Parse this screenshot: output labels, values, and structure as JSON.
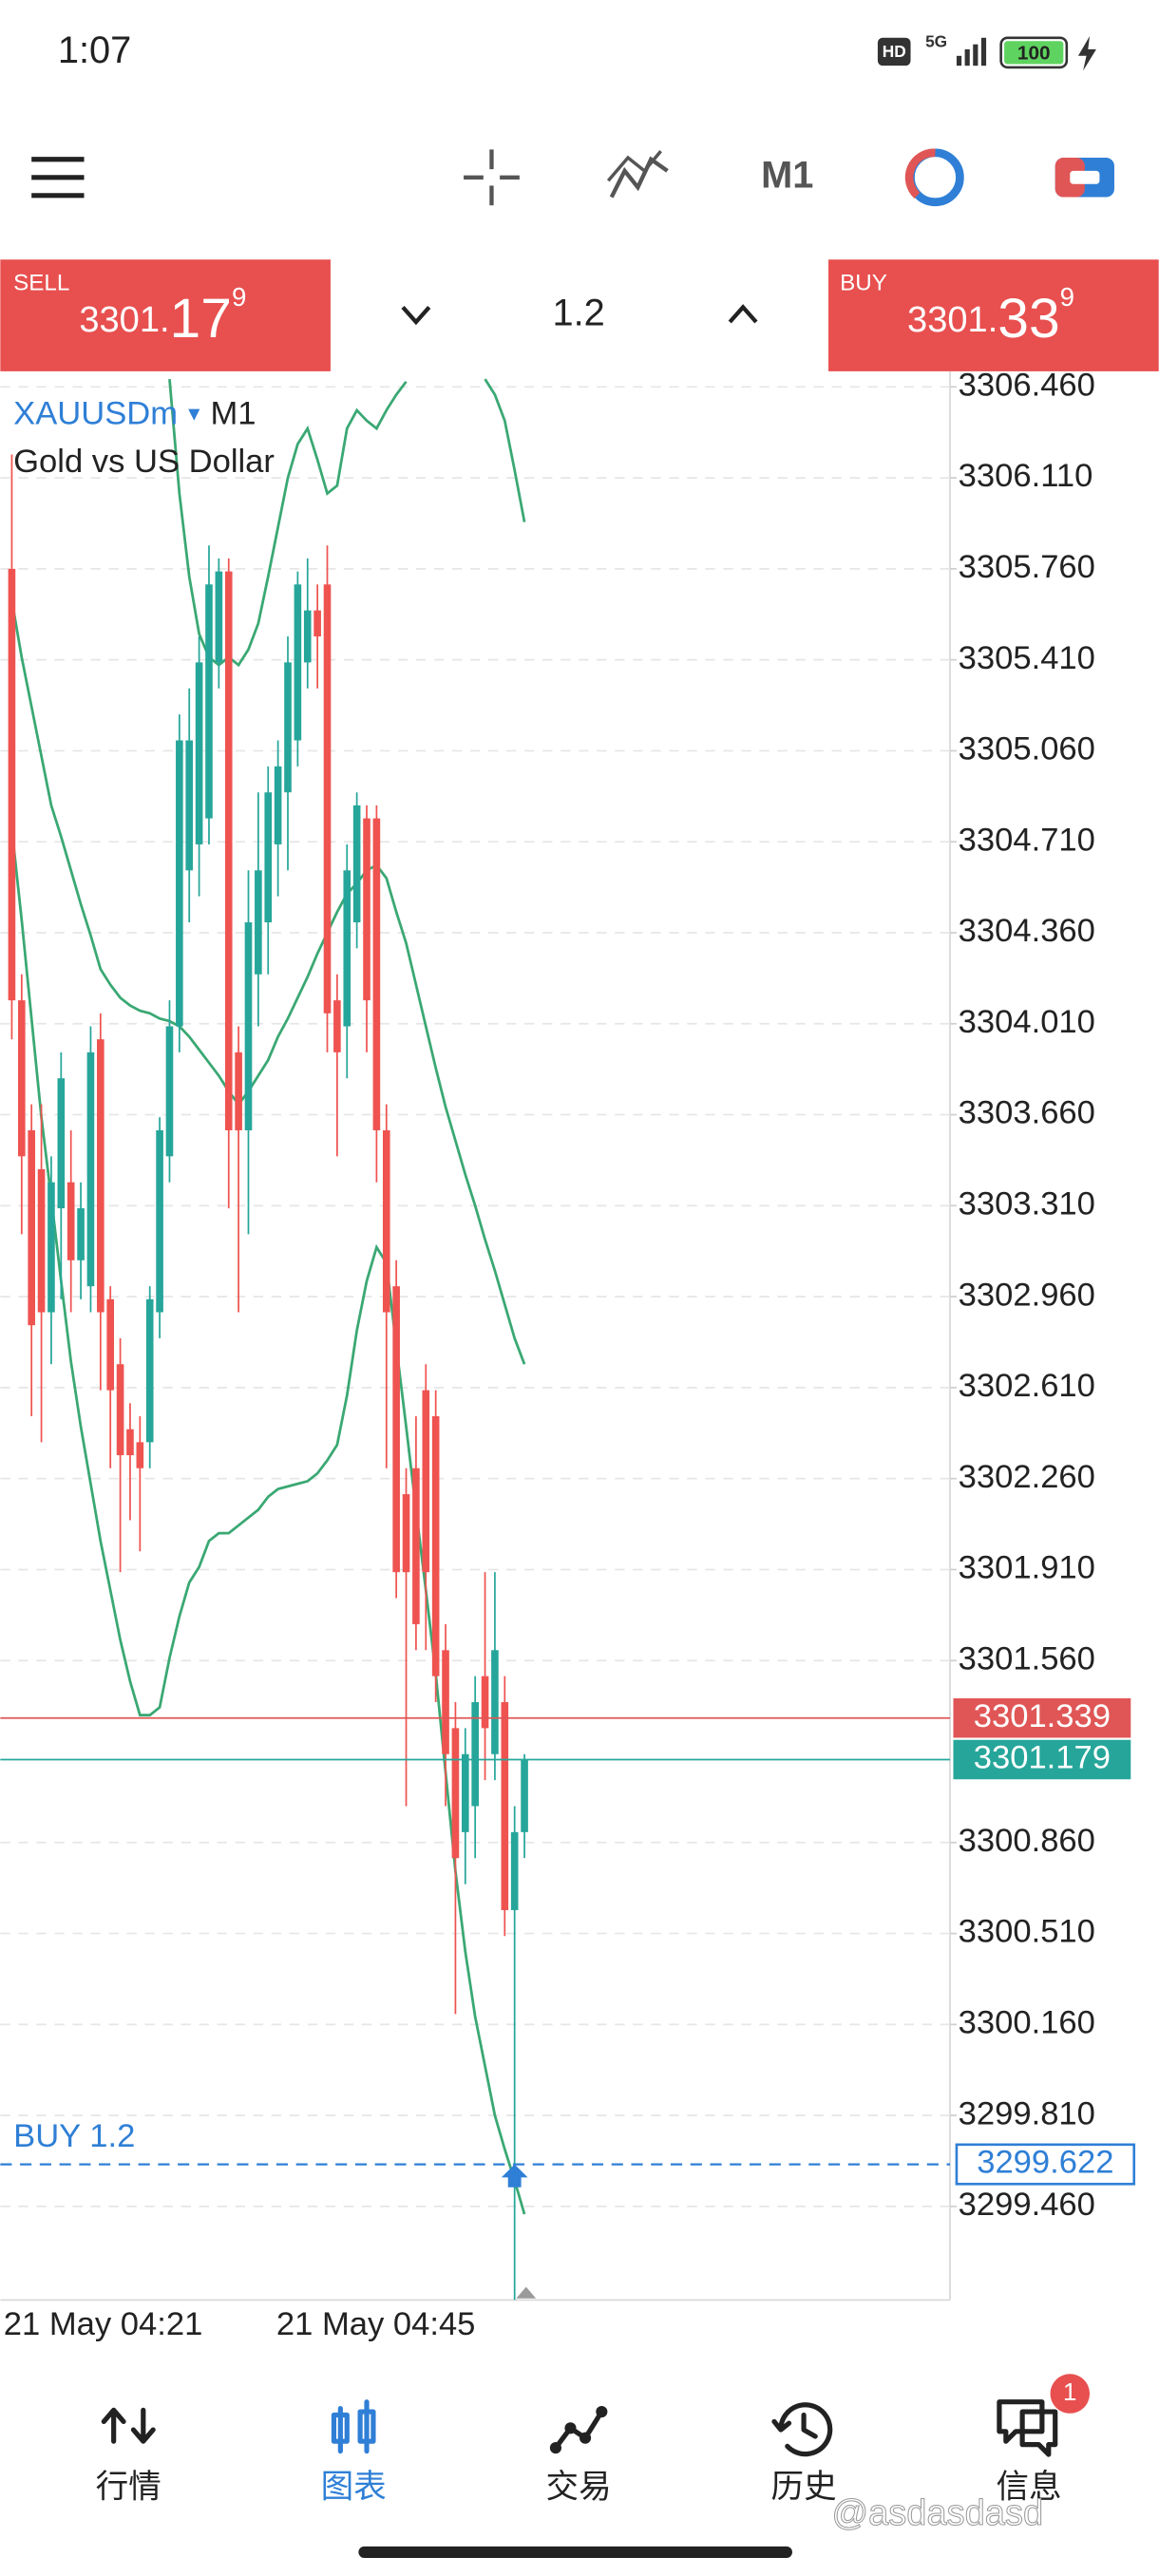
{
  "status_bar": {
    "time": "1:07",
    "icons": [
      "HD",
      "5G"
    ],
    "battery": "100"
  },
  "toolbar": {
    "timeframe": "M1"
  },
  "trade_panel": {
    "sell": {
      "label": "SELL",
      "price_parts": [
        "3301.",
        "17",
        "9"
      ]
    },
    "volume": "1.2",
    "buy": {
      "label": "BUY",
      "price_parts": [
        "3301.",
        "33",
        "9"
      ]
    }
  },
  "chart_data": {
    "type": "candlestick",
    "symbol": "XAUUSDm",
    "timeframe": "M1",
    "description": "Gold vs US Dollar",
    "up_color": "#26a69a",
    "down_color": "#ef5350",
    "grid": true,
    "ylim": [
      3299.1,
      3306.52
    ],
    "yticks": [
      {
        "value": 3306.46,
        "label": "3306.460"
      },
      {
        "value": 3306.11,
        "label": "3306.110"
      },
      {
        "value": 3305.76,
        "label": "3305.760"
      },
      {
        "value": 3305.41,
        "label": "3305.410"
      },
      {
        "value": 3305.06,
        "label": "3305.060"
      },
      {
        "value": 3304.71,
        "label": "3304.710"
      },
      {
        "value": 3304.36,
        "label": "3304.360"
      },
      {
        "value": 3304.01,
        "label": "3304.010"
      },
      {
        "value": 3303.66,
        "label": "3303.660"
      },
      {
        "value": 3303.31,
        "label": "3303.310"
      },
      {
        "value": 3302.96,
        "label": "3302.960"
      },
      {
        "value": 3302.61,
        "label": "3302.610"
      },
      {
        "value": 3302.26,
        "label": "3302.260"
      },
      {
        "value": 3301.91,
        "label": "3301.910"
      },
      {
        "value": 3301.56,
        "label": "3301.560"
      },
      {
        "value": 3300.86,
        "label": "3300.860"
      },
      {
        "value": 3300.51,
        "label": "3300.510"
      },
      {
        "value": 3300.16,
        "label": "3300.160"
      },
      {
        "value": 3299.81,
        "label": "3299.810"
      },
      {
        "value": 3299.46,
        "label": "3299.460"
      }
    ],
    "x_labels": [
      "21 May 04:21",
      "21 May 04:45"
    ],
    "candles": {
      "open": [
        3305.76,
        3304.1,
        3303.6,
        3303.45,
        3302.9,
        3303.3,
        3303.4,
        3303.1,
        3303.0,
        3303.95,
        3302.95,
        3302.7,
        3302.45,
        3302.4,
        3302.4,
        3302.9,
        3303.5,
        3304.0,
        3304.6,
        3304.7,
        3304.8,
        3305.4,
        3305.75,
        3303.9,
        3303.6,
        3304.2,
        3304.4,
        3304.7,
        3304.9,
        3305.1,
        3305.4,
        3305.6,
        3305.7,
        3304.1,
        3304.0,
        3304.4,
        3304.8,
        3304.8,
        3303.6,
        3303.0,
        3302.2,
        3302.3,
        3302.6,
        3302.5,
        3301.6,
        3301.3,
        3300.9,
        3301.0,
        3301.5,
        3301.2,
        3301.4,
        3300.6,
        3300.9
      ],
      "high": [
        3306.2,
        3304.2,
        3303.7,
        3303.7,
        3303.5,
        3303.9,
        3303.6,
        3303.4,
        3304.0,
        3304.05,
        3303.0,
        3302.8,
        3302.55,
        3302.5,
        3303.0,
        3303.65,
        3304.1,
        3305.2,
        3305.3,
        3305.5,
        3305.85,
        3305.8,
        3305.8,
        3304.0,
        3304.6,
        3304.9,
        3305.0,
        3305.1,
        3305.5,
        3305.75,
        3305.8,
        3305.7,
        3305.85,
        3304.2,
        3304.7,
        3304.9,
        3304.85,
        3304.85,
        3303.7,
        3303.1,
        3302.3,
        3302.5,
        3302.7,
        3302.6,
        3301.7,
        3301.4,
        3301.3,
        3301.5,
        3301.9,
        3301.9,
        3301.5,
        3301.0,
        3301.2
      ],
      "low": [
        3303.95,
        3303.2,
        3302.5,
        3302.4,
        3302.7,
        3302.95,
        3302.9,
        3302.95,
        3302.9,
        3302.6,
        3302.3,
        3301.9,
        3302.1,
        3301.98,
        3302.3,
        3302.8,
        3303.4,
        3303.9,
        3304.4,
        3304.5,
        3304.7,
        3305.3,
        3303.3,
        3302.9,
        3303.2,
        3304.0,
        3304.2,
        3304.5,
        3304.6,
        3305.0,
        3305.3,
        3305.3,
        3303.9,
        3303.5,
        3303.8,
        3304.3,
        3303.9,
        3303.4,
        3302.3,
        3301.8,
        3301.0,
        3301.6,
        3301.6,
        3301.4,
        3301.0,
        3300.2,
        3300.7,
        3300.8,
        3301.1,
        3301.1,
        3300.5,
        3299.1,
        3300.8
      ],
      "close": [
        3304.1,
        3303.5,
        3302.85,
        3302.9,
        3303.4,
        3303.8,
        3303.1,
        3303.3,
        3303.9,
        3302.9,
        3302.6,
        3302.35,
        3302.35,
        3302.3,
        3302.95,
        3303.6,
        3304.0,
        3305.1,
        3305.1,
        3305.4,
        3305.7,
        3305.75,
        3303.6,
        3303.6,
        3304.4,
        3304.6,
        3304.9,
        3305.0,
        3305.4,
        3305.7,
        3305.6,
        3305.5,
        3304.05,
        3303.9,
        3304.6,
        3304.85,
        3304.1,
        3303.6,
        3302.9,
        3301.9,
        3301.9,
        3301.7,
        3301.9,
        3301.5,
        3301.2,
        3300.8,
        3301.2,
        3301.4,
        3301.3,
        3301.6,
        3300.6,
        3300.9,
        3301.179
      ]
    },
    "bands": [
      {
        "color": "#3aa873",
        "values": [
          null,
          null,
          null,
          null,
          null,
          null,
          null,
          null,
          null,
          null,
          null,
          null,
          null,
          null,
          null,
          null,
          3306.49,
          3306.05,
          3305.73,
          3305.51,
          3305.42,
          3305.39,
          3305.42,
          3305.39,
          3305.45,
          3305.55,
          3305.73,
          3305.92,
          3306.11,
          3306.24,
          3306.3,
          3306.18,
          3306.05,
          3306.08,
          3306.3,
          3306.37,
          3306.33,
          3306.3,
          3306.37,
          3306.43,
          3306.48,
          null,
          null,
          null,
          null,
          null,
          null,
          null,
          3306.49,
          3306.43,
          3306.33,
          3306.14,
          3305.94
        ]
      },
      {
        "color": "#3aa873",
        "values": [
          3305.64,
          3305.42,
          3305.23,
          3305.04,
          3304.85,
          3304.73,
          3304.6,
          3304.47,
          3304.35,
          3304.22,
          3304.16,
          3304.11,
          3304.08,
          3304.06,
          3304.05,
          3304.03,
          3304.02,
          3304.0,
          3303.96,
          3303.91,
          3303.86,
          3303.81,
          3303.75,
          3303.7,
          3303.75,
          3303.81,
          3303.87,
          3303.96,
          3304.03,
          3304.11,
          3304.19,
          3304.28,
          3304.36,
          3304.44,
          3304.51,
          3304.55,
          3304.6,
          3304.62,
          3304.57,
          3304.44,
          3304.32,
          3304.16,
          3304.0,
          3303.84,
          3303.69,
          3303.56,
          3303.43,
          3303.31,
          3303.18,
          3303.06,
          3302.93,
          3302.8,
          3302.7
        ]
      },
      {
        "color": "#3aa873",
        "values": [
          3304.76,
          3304.41,
          3304.03,
          3303.65,
          3303.34,
          3303.02,
          3302.71,
          3302.46,
          3302.24,
          3302.02,
          3301.83,
          3301.64,
          3301.48,
          3301.35,
          3301.35,
          3301.38,
          3301.57,
          3301.73,
          3301.86,
          3301.92,
          3302.02,
          3302.05,
          3302.05,
          3302.08,
          3302.11,
          3302.14,
          3302.19,
          3302.22,
          3302.23,
          3302.24,
          3302.25,
          3302.28,
          3302.33,
          3302.39,
          3302.58,
          3302.83,
          3303.02,
          3303.15,
          3303.09,
          3302.77,
          3302.46,
          3302.14,
          3301.83,
          3301.51,
          3301.13,
          3300.75,
          3300.44,
          3300.19,
          3300.0,
          3299.81,
          3299.68,
          3299.56,
          3299.43
        ]
      }
    ],
    "price_lines": [
      {
        "value": 3301.339,
        "color": "#e05656"
      },
      {
        "value": 3301.179,
        "color": "#26a69a"
      }
    ],
    "order_line": {
      "label": "BUY 1.2",
      "value": 3299.622,
      "color": "#2f7fd6"
    }
  },
  "bottom_nav": {
    "items": [
      {
        "label": "行情",
        "active": false
      },
      {
        "label": "图表",
        "active": true
      },
      {
        "label": "交易",
        "active": false
      },
      {
        "label": "历史",
        "active": false
      },
      {
        "label": "信息",
        "active": false
      }
    ],
    "badge": "1"
  },
  "watermark": "@asdasdasd"
}
